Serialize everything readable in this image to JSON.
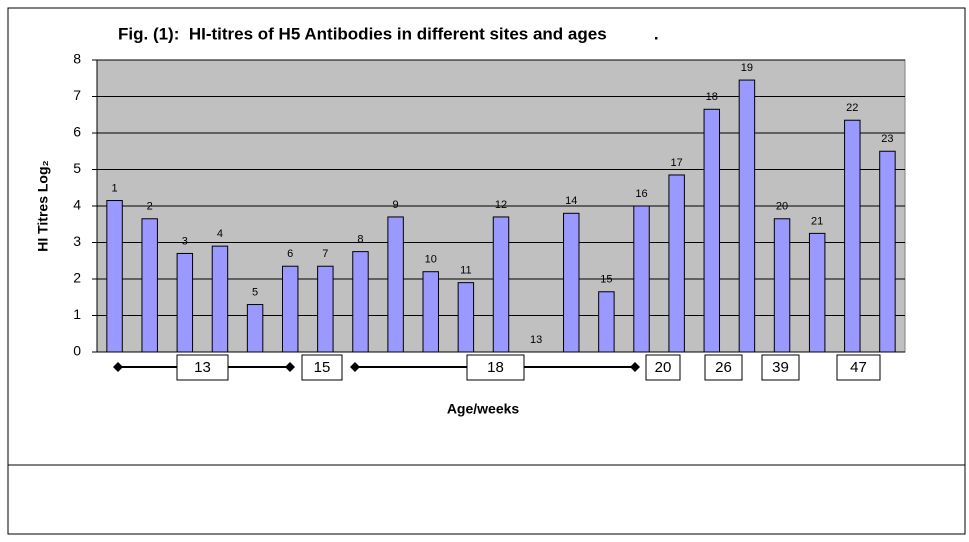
{
  "chart_data": {
    "type": "bar",
    "title": "Fig. (1):  HI-titres of H5 Antibodies in different sites and ages          .",
    "y_label": "HI Titres Log₂",
    "x_label": "Age/weeks",
    "categories": [
      "1",
      "2",
      "3",
      "4",
      "5",
      "6",
      "7",
      "8",
      "9",
      "10",
      "11",
      "12",
      "13",
      "14",
      "15",
      "16",
      "17",
      "18",
      "19",
      "20",
      "21",
      "22",
      "23"
    ],
    "values": [
      4.15,
      3.65,
      2.7,
      2.9,
      1.3,
      2.35,
      2.35,
      2.75,
      3.7,
      2.2,
      1.9,
      3.7,
      0,
      3.8,
      1.65,
      4.0,
      4.85,
      6.65,
      7.45,
      3.65,
      3.25,
      6.35,
      5.5
    ],
    "color": "#9999ff",
    "ylim": [
      0,
      8
    ],
    "yticks": [
      0,
      1,
      2,
      3,
      4,
      5,
      6,
      7,
      8
    ],
    "grid": true,
    "age_groups": [
      "13",
      "15",
      "18",
      "20",
      "26",
      "39",
      "47"
    ]
  }
}
